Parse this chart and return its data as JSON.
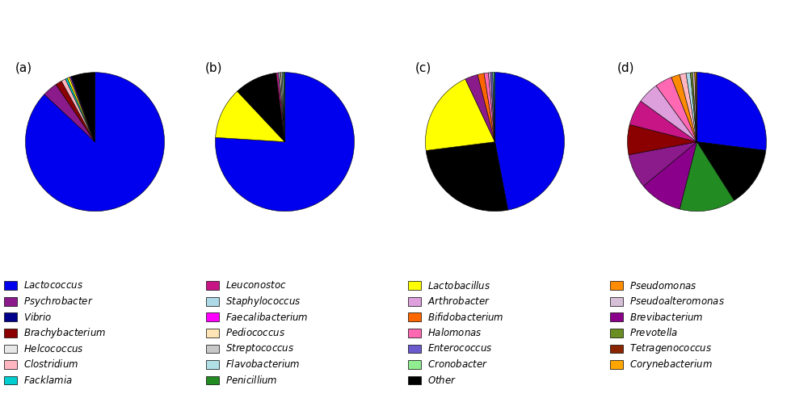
{
  "col1": [
    [
      "Lactococcus",
      "#0000EE"
    ],
    [
      "Psychrobacter",
      "#8B1A8B"
    ],
    [
      "Vibrio",
      "#00008B"
    ],
    [
      "Brachybacterium",
      "#8B0000"
    ],
    [
      "Helcococcus",
      "#E8E8E8"
    ],
    [
      "Clostridium",
      "#FFB6C1"
    ],
    [
      "Facklamia",
      "#00CED1"
    ]
  ],
  "col2": [
    [
      "Leuconostoc",
      "#C71585"
    ],
    [
      "Staphylococcus",
      "#ADD8E6"
    ],
    [
      "Faecalibacterium",
      "#FF00FF"
    ],
    [
      "Pediococcus",
      "#FFE4B5"
    ],
    [
      "Streptococcus",
      "#C8C8C8"
    ],
    [
      "Flavobacterium",
      "#B0E0E6"
    ],
    [
      "Penicillium",
      "#228B22"
    ]
  ],
  "col3": [
    [
      "Lactobacillus",
      "#FFFF00"
    ],
    [
      "Arthrobacter",
      "#DDA0DD"
    ],
    [
      "Bifidobacterium",
      "#FF6600"
    ],
    [
      "Halomonas",
      "#FF69B4"
    ],
    [
      "Enterococcus",
      "#6A5ACD"
    ],
    [
      "Cronobacter",
      "#90EE90"
    ],
    [
      "Other",
      "#000000"
    ]
  ],
  "col4": [
    [
      "Pseudomonas",
      "#FF8C00"
    ],
    [
      "Pseudoalteromonas",
      "#D8BFD8"
    ],
    [
      "Brevibacterium",
      "#8B008B"
    ],
    [
      "Prevotella",
      "#6B8E23"
    ],
    [
      "Tetragenococcus",
      "#8B2500"
    ],
    [
      "Corynebacterium",
      "#FFA500"
    ]
  ],
  "pie_a": {
    "values": [
      87.0,
      3.5,
      1.5,
      1.0,
      0.5,
      0.5,
      0.3,
      0.3,
      5.4
    ],
    "colors": [
      "#0000EE",
      "#8B1A8B",
      "#8B0000",
      "#FFB6C1",
      "#00CED1",
      "#FFFF00",
      "#FF69B4",
      "#00008B",
      "#000000"
    ],
    "startangle": 90,
    "counterclock": false
  },
  "pie_b": {
    "values": [
      76.0,
      12.0,
      10.0,
      0.5,
      0.3,
      0.3,
      0.3,
      0.3,
      0.3
    ],
    "colors": [
      "#0000EE",
      "#FFFF00",
      "#000000",
      "#C71585",
      "#ADD8E6",
      "#FFE4B5",
      "#C8C8C8",
      "#B0E0E6",
      "#228B22"
    ],
    "startangle": 90,
    "counterclock": false
  },
  "pie_c": {
    "values": [
      47.0,
      26.0,
      20.0,
      3.0,
      1.5,
      1.0,
      0.5,
      0.5,
      0.3,
      0.2
    ],
    "colors": [
      "#0000EE",
      "#000000",
      "#FFFF00",
      "#8B1A8B",
      "#FF6600",
      "#FF69B4",
      "#DDA0DD",
      "#6A5ACD",
      "#90EE90",
      "#00CED1"
    ],
    "startangle": 90,
    "counterclock": false
  },
  "pie_d": {
    "values": [
      27.0,
      14.0,
      13.0,
      10.0,
      8.0,
      7.0,
      6.0,
      5.0,
      4.0,
      2.0,
      1.5,
      1.0,
      0.5,
      0.5,
      0.3,
      0.2
    ],
    "colors": [
      "#0000EE",
      "#000000",
      "#228B22",
      "#8B008B",
      "#8B1A8B",
      "#8B0000",
      "#C71585",
      "#DDA0DD",
      "#FF69B4",
      "#FF8C00",
      "#FFB6C1",
      "#ADD8E6",
      "#6B8E23",
      "#D8BFD8",
      "#FFA500",
      "#DAA520"
    ],
    "startangle": 90,
    "counterclock": false
  }
}
